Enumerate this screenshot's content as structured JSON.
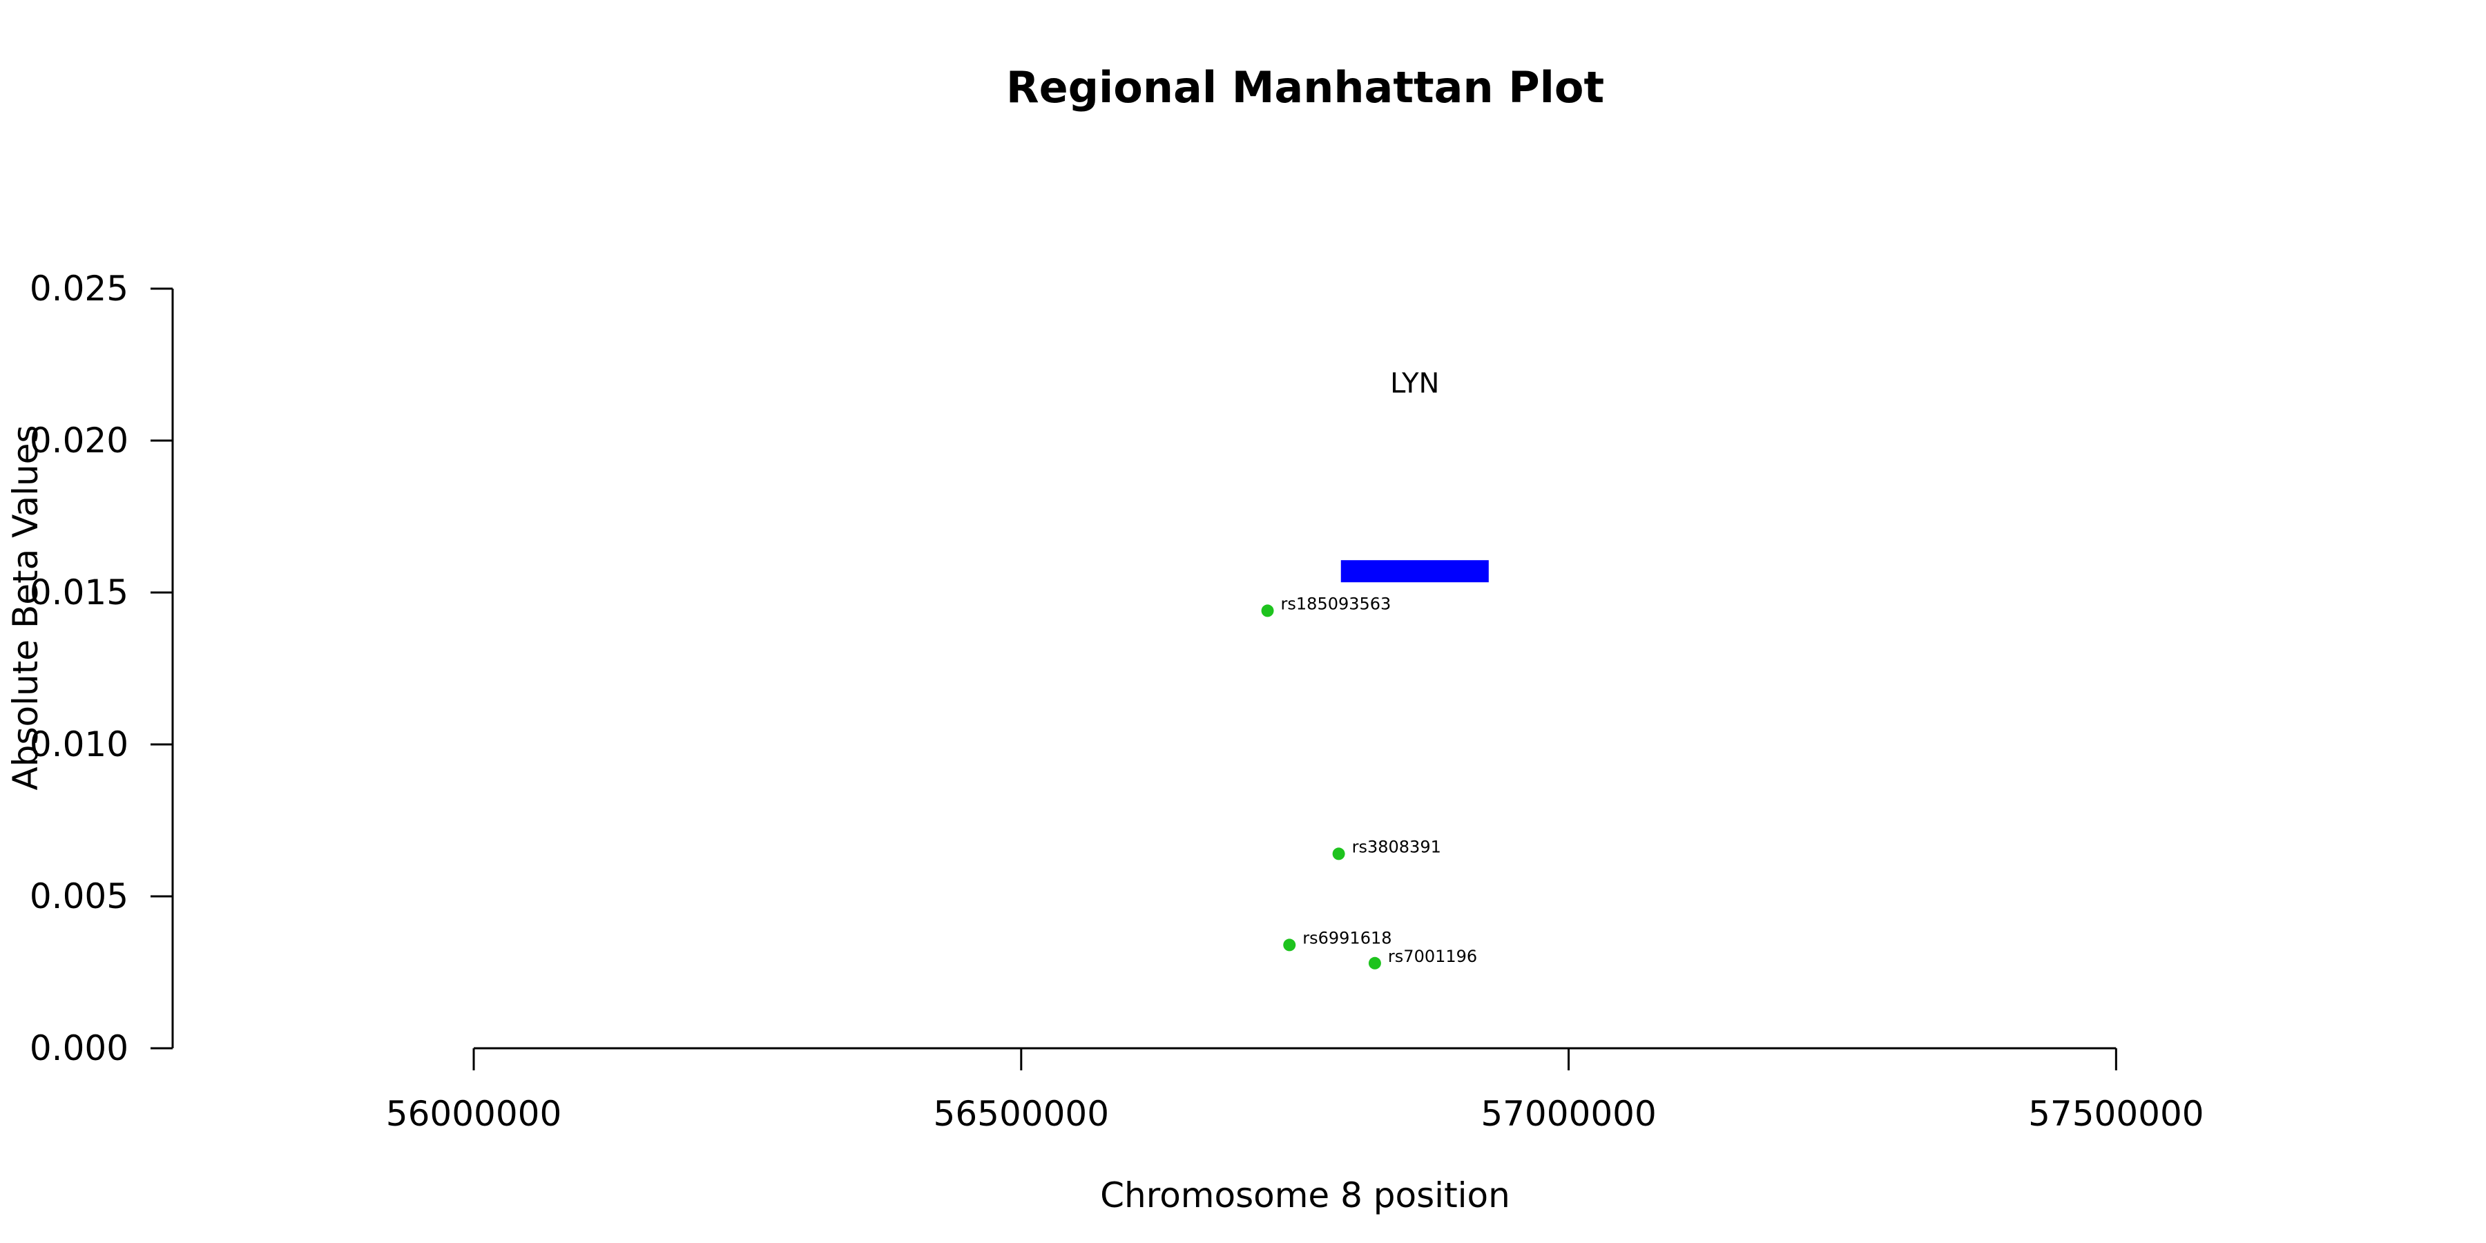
{
  "chart_data": {
    "type": "scatter",
    "title": "Regional Manhattan Plot",
    "xlabel": "Chromosome 8 position",
    "ylabel": "Absolute Beta Values",
    "xlim": [
      55725000,
      57800000
    ],
    "ylim": [
      0,
      0.025
    ],
    "x_ticks": [
      56000000,
      56500000,
      57000000,
      57500000
    ],
    "x_tick_labels": [
      "56000000",
      "56500000",
      "57000000",
      "57500000"
    ],
    "y_ticks": [
      0,
      0.005,
      0.01,
      0.015,
      0.02,
      0.025
    ],
    "y_tick_labels": [
      "0.000",
      "0.005",
      "0.010",
      "0.015",
      "0.020",
      "0.025"
    ],
    "grid": false,
    "points": [
      {
        "label": "rs185093563",
        "x": 56725000,
        "y": 0.0144
      },
      {
        "label": "rs3808391",
        "x": 56790000,
        "y": 0.0064
      },
      {
        "label": "rs6991618",
        "x": 56745000,
        "y": 0.0034
      },
      {
        "label": "rs7001196",
        "x": 56823000,
        "y": 0.0028
      }
    ],
    "point_color": "#1ec31e",
    "genes": [
      {
        "name": "LYN",
        "start": 56792000,
        "end": 56927000,
        "y": 0.0157,
        "label_y": 0.0219,
        "color": "#0000ff"
      }
    ]
  }
}
